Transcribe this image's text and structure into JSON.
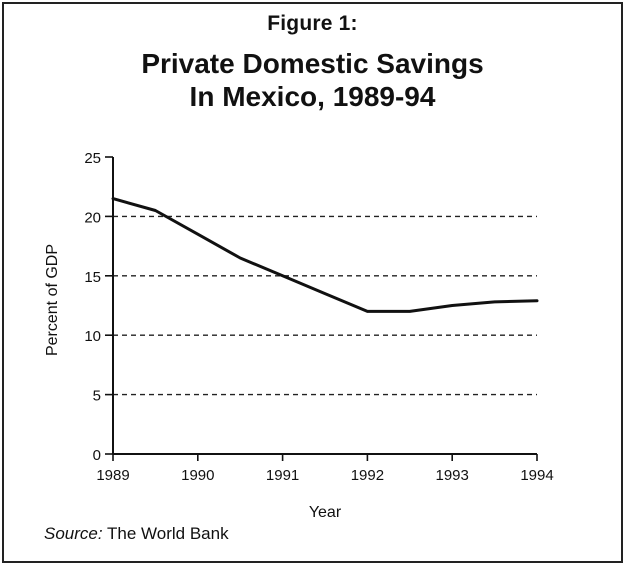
{
  "figure_label": "Figure 1:",
  "title": "Private Domestic Savings\nIn Mexico, 1989-94",
  "source": {
    "label": "Source:",
    "text": " The World Bank"
  },
  "chart_data": {
    "type": "line",
    "title": "Private Domestic Savings In Mexico, 1989-94",
    "xlabel": "Year",
    "ylabel": "Percent of GDP",
    "x": [
      1989,
      1989.5,
      1990,
      1990.5,
      1991,
      1991.5,
      1992,
      1992.5,
      1993,
      1993.5,
      1994
    ],
    "series": [
      {
        "values": [
          21.5,
          20.5,
          18.5,
          16.5,
          15.0,
          13.5,
          12.0,
          12.0,
          12.5,
          12.8,
          12.9
        ],
        "color": "#111111"
      }
    ],
    "xticks": [
      "1989",
      "1990",
      "1991",
      "1992",
      "1993",
      "1994"
    ],
    "yticks": [
      "0",
      "5",
      "10",
      "15",
      "20",
      "25"
    ],
    "xlim": [
      1989,
      1994
    ],
    "ylim": [
      0,
      25
    ],
    "grid": "dashed horizontal at 5, 10, 15, 20",
    "legend": "none"
  }
}
